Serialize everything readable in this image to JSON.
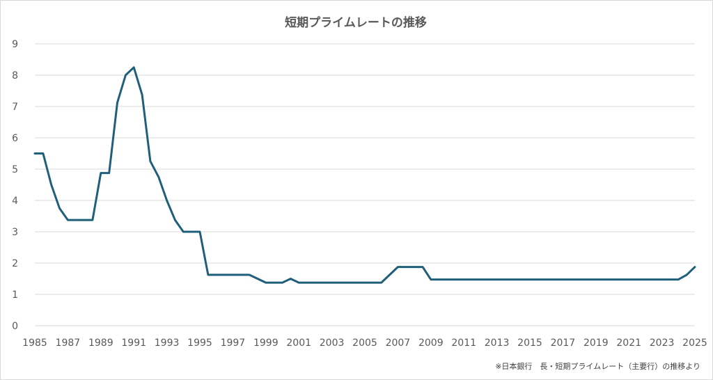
{
  "chart_data": {
    "type": "line",
    "title": "短期プライムレートの推移",
    "xlabel": "",
    "ylabel": "",
    "xlim": [
      1985,
      2025
    ],
    "ylim": [
      0,
      9
    ],
    "y_ticks": [
      "0",
      "1",
      "2",
      "3",
      "4",
      "5",
      "6",
      "7",
      "8",
      "9"
    ],
    "x_ticks": [
      "1985",
      "1987",
      "1989",
      "1991",
      "1993",
      "1995",
      "1997",
      "1999",
      "2001",
      "2003",
      "2005",
      "2007",
      "2009",
      "2011",
      "2013",
      "2015",
      "2017",
      "2019",
      "2021",
      "2023",
      "2025"
    ],
    "grid": "horizontal",
    "line_color": "#1f5f7a",
    "note": "※日本銀行　長・短期プライムレート（主要行）の推移より",
    "series": [
      {
        "values": [
          [
            1985.0,
            5.5
          ],
          [
            1985.5,
            5.5
          ],
          [
            1986.0,
            4.5
          ],
          [
            1986.5,
            3.75
          ],
          [
            1987.0,
            3.375
          ],
          [
            1987.5,
            3.375
          ],
          [
            1988.0,
            3.375
          ],
          [
            1988.5,
            3.375
          ],
          [
            1989.0,
            4.875
          ],
          [
            1989.5,
            4.875
          ],
          [
            1990.0,
            7.125
          ],
          [
            1990.5,
            8.0
          ],
          [
            1991.0,
            8.25
          ],
          [
            1991.5,
            7.375
          ],
          [
            1992.0,
            5.25
          ],
          [
            1992.5,
            4.75
          ],
          [
            1993.0,
            4.0
          ],
          [
            1993.5,
            3.375
          ],
          [
            1994.0,
            3.0
          ],
          [
            1994.5,
            3.0
          ],
          [
            1995.0,
            3.0
          ],
          [
            1995.5,
            1.625
          ],
          [
            1996.0,
            1.625
          ],
          [
            1997.0,
            1.625
          ],
          [
            1998.0,
            1.625
          ],
          [
            1999.0,
            1.375
          ],
          [
            2000.0,
            1.375
          ],
          [
            2000.5,
            1.5
          ],
          [
            2001.0,
            1.375
          ],
          [
            2003.0,
            1.375
          ],
          [
            2005.0,
            1.375
          ],
          [
            2006.0,
            1.375
          ],
          [
            2007.0,
            1.875
          ],
          [
            2008.0,
            1.875
          ],
          [
            2008.5,
            1.875
          ],
          [
            2009.0,
            1.475
          ],
          [
            2011.0,
            1.475
          ],
          [
            2015.0,
            1.475
          ],
          [
            2020.0,
            1.475
          ],
          [
            2024.0,
            1.475
          ],
          [
            2024.5,
            1.625
          ],
          [
            2025.0,
            1.875
          ]
        ]
      }
    ]
  }
}
